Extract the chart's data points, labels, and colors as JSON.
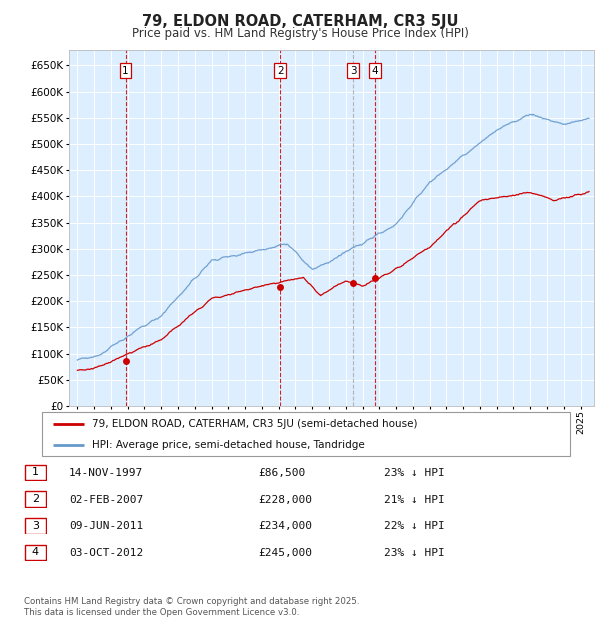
{
  "title": "79, ELDON ROAD, CATERHAM, CR3 5JU",
  "subtitle": "Price paid vs. HM Land Registry's House Price Index (HPI)",
  "ylim": [
    0,
    680000
  ],
  "yticks": [
    0,
    50000,
    100000,
    150000,
    200000,
    250000,
    300000,
    350000,
    400000,
    450000,
    500000,
    550000,
    600000,
    650000
  ],
  "plot_bg_color": "#ddeeff",
  "grid_color": "#ffffff",
  "transactions": [
    {
      "date_num": 1997.87,
      "price": 86500,
      "label": "1",
      "linestyle": "dashed",
      "linecolor": "#cc0000"
    },
    {
      "date_num": 2007.09,
      "price": 228000,
      "label": "2",
      "linestyle": "dashed",
      "linecolor": "#cc0000"
    },
    {
      "date_num": 2011.44,
      "price": 234000,
      "label": "3",
      "linestyle": "dashed",
      "linecolor": "#aaaaaa"
    },
    {
      "date_num": 2012.75,
      "price": 245000,
      "label": "4",
      "linestyle": "dashed",
      "linecolor": "#cc0000"
    }
  ],
  "legend_entries": [
    {
      "label": "79, ELDON ROAD, CATERHAM, CR3 5JU (semi-detached house)",
      "color": "#cc0000"
    },
    {
      "label": "HPI: Average price, semi-detached house, Tandridge",
      "color": "#6699cc"
    }
  ],
  "table_rows": [
    {
      "num": "1",
      "date": "14-NOV-1997",
      "price": "£86,500",
      "pct": "23% ↓ HPI"
    },
    {
      "num": "2",
      "date": "02-FEB-2007",
      "price": "£228,000",
      "pct": "21% ↓ HPI"
    },
    {
      "num": "3",
      "date": "09-JUN-2011",
      "price": "£234,000",
      "pct": "22% ↓ HPI"
    },
    {
      "num": "4",
      "date": "03-OCT-2012",
      "price": "£245,000",
      "pct": "23% ↓ HPI"
    }
  ],
  "footer": "Contains HM Land Registry data © Crown copyright and database right 2025.\nThis data is licensed under the Open Government Licence v3.0.",
  "xmin": 1994.5,
  "xmax": 2025.8
}
